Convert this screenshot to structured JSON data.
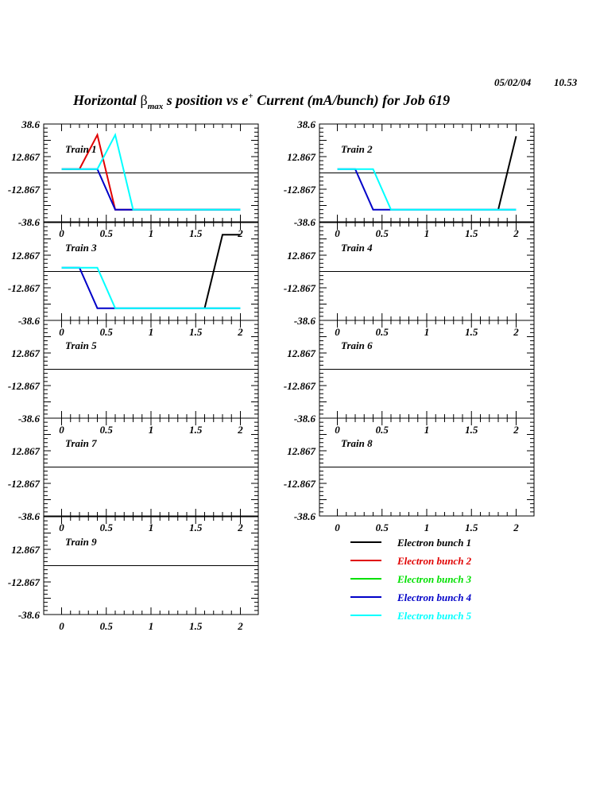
{
  "header": {
    "date": "05/02/04",
    "time": "10.53",
    "title_prefix": "Horizontal ",
    "title_beta": "β",
    "title_sub": "max",
    "title_mid": " s position vs e",
    "title_sup": "+",
    "title_suffix": " Current (mA/bunch) for Job 619"
  },
  "chart_data": {
    "type": "line",
    "title": "Horizontal βmax s position vs e+ Current (mA/bunch) for Job 619",
    "xlabel": "",
    "ylabel": "",
    "xlim": [
      -0.2,
      2.2
    ],
    "ylim": [
      -38.6,
      38.6
    ],
    "x_ticks": [
      "0",
      "0.5",
      "1",
      "1.5",
      "2"
    ],
    "x_tick_values": [
      0,
      0.5,
      1,
      1.5,
      2
    ],
    "y_ticks": [
      "38.6",
      "12.867",
      "-12.867",
      "-38.6"
    ],
    "y_tick_values": [
      38.6,
      12.867,
      -12.867,
      -38.6
    ],
    "x": [
      0,
      0.2,
      0.4,
      0.6,
      0.8,
      1.0,
      1.2,
      1.4,
      1.6,
      1.8,
      2.0
    ],
    "legend": [
      {
        "name": "Electron bunch 1",
        "color": "#000000"
      },
      {
        "name": "Electron bunch 2",
        "color": "#e00000"
      },
      {
        "name": "Electron bunch 3",
        "color": "#00e000"
      },
      {
        "name": "Electron bunch 4",
        "color": "#0000c8"
      },
      {
        "name": "Electron bunch 5",
        "color": "#00ffff"
      }
    ],
    "legend_placement": "bottom-right",
    "panels": [
      {
        "label": "Train 1",
        "series": [
          {
            "bunch": 2,
            "values": [
              3,
              3,
              30,
              -29,
              -29,
              -29,
              -29,
              -29,
              -29,
              -29,
              -29
            ]
          },
          {
            "bunch": 4,
            "values": [
              3,
              3,
              3,
              -29,
              -29,
              -29,
              -29,
              -29,
              -29,
              -29,
              -29
            ]
          },
          {
            "bunch": 5,
            "values": [
              3,
              3,
              3,
              30,
              -29,
              -29,
              -29,
              -29,
              -29,
              -29,
              -29
            ]
          }
        ]
      },
      {
        "label": "Train 2",
        "series": [
          {
            "bunch": 1,
            "values": [
              null,
              null,
              null,
              null,
              null,
              null,
              null,
              null,
              null,
              -29,
              29
            ]
          },
          {
            "bunch": 4,
            "values": [
              3,
              3,
              -29,
              -29,
              -29,
              -29,
              -29,
              -29,
              -29,
              -29,
              -29
            ]
          },
          {
            "bunch": 5,
            "values": [
              3,
              3,
              3,
              -29,
              -29,
              -29,
              -29,
              -29,
              -29,
              -29,
              -29
            ]
          }
        ]
      },
      {
        "label": "Train 3",
        "series": [
          {
            "bunch": 1,
            "values": [
              null,
              null,
              null,
              null,
              null,
              null,
              null,
              null,
              -29,
              29,
              29
            ]
          },
          {
            "bunch": 4,
            "values": [
              3,
              3,
              -29,
              -29,
              -29,
              -29,
              -29,
              -29,
              -29,
              -29,
              -29
            ]
          },
          {
            "bunch": 5,
            "values": [
              3,
              3,
              3,
              -29,
              -29,
              -29,
              -29,
              -29,
              -29,
              -29,
              -29
            ]
          }
        ]
      },
      {
        "label": "Train 4",
        "series": []
      },
      {
        "label": "Train 5",
        "series": []
      },
      {
        "label": "Train 6",
        "series": []
      },
      {
        "label": "Train 7",
        "series": []
      },
      {
        "label": "Train 8",
        "series": []
      },
      {
        "label": "Train 9",
        "series": []
      }
    ]
  }
}
